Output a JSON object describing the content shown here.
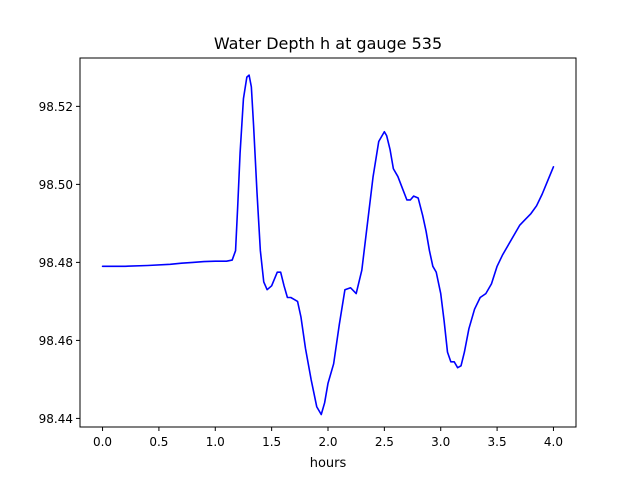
{
  "chart_data": {
    "type": "line",
    "title": "Water Depth h at gauge 535",
    "xlabel": "hours",
    "ylabel": "",
    "xlim": [
      -0.2,
      4.2
    ],
    "ylim": [
      98.4378,
      98.5324
    ],
    "xticks": [
      0.0,
      0.5,
      1.0,
      1.5,
      2.0,
      2.5,
      3.0,
      3.5,
      4.0
    ],
    "xtick_labels": [
      "0.0",
      "0.5",
      "1.0",
      "1.5",
      "2.0",
      "2.5",
      "3.0",
      "3.5",
      "4.0"
    ],
    "yticks": [
      98.44,
      98.46,
      98.48,
      98.5,
      98.52
    ],
    "ytick_labels": [
      "98.44",
      "98.46",
      "98.48",
      "98.50",
      "98.52"
    ],
    "grid": false,
    "series": [
      {
        "name": "",
        "color": "#0000ff",
        "x": [
          0.0,
          0.2,
          0.4,
          0.6,
          0.7,
          0.8,
          0.9,
          1.0,
          1.1,
          1.15,
          1.18,
          1.2,
          1.22,
          1.25,
          1.28,
          1.3,
          1.32,
          1.34,
          1.37,
          1.4,
          1.43,
          1.46,
          1.5,
          1.55,
          1.58,
          1.61,
          1.64,
          1.67,
          1.7,
          1.73,
          1.76,
          1.8,
          1.85,
          1.9,
          1.94,
          1.97,
          2.0,
          2.05,
          2.1,
          2.15,
          2.2,
          2.25,
          2.3,
          2.35,
          2.4,
          2.45,
          2.5,
          2.52,
          2.55,
          2.58,
          2.62,
          2.66,
          2.7,
          2.73,
          2.76,
          2.8,
          2.84,
          2.87,
          2.9,
          2.93,
          2.96,
          3.0,
          3.03,
          3.06,
          3.09,
          3.12,
          3.15,
          3.18,
          3.21,
          3.25,
          3.3,
          3.35,
          3.4,
          3.45,
          3.5,
          3.55,
          3.6,
          3.65,
          3.7,
          3.75,
          3.8,
          3.85,
          3.9,
          3.95,
          4.0
        ],
        "y": [
          98.479,
          98.479,
          98.4792,
          98.4795,
          98.4798,
          98.48,
          98.4802,
          98.4803,
          98.4803,
          98.4806,
          98.483,
          98.495,
          98.508,
          98.522,
          98.5275,
          98.528,
          98.525,
          98.515,
          98.498,
          98.483,
          98.475,
          98.473,
          98.474,
          98.4775,
          98.4775,
          98.474,
          98.471,
          98.471,
          98.4705,
          98.47,
          98.466,
          98.458,
          98.45,
          98.443,
          98.441,
          98.444,
          98.449,
          98.454,
          98.464,
          98.473,
          98.4735,
          98.472,
          98.478,
          98.49,
          98.502,
          98.511,
          98.5135,
          98.5125,
          98.509,
          98.504,
          98.502,
          98.499,
          98.496,
          98.496,
          98.497,
          98.4965,
          98.492,
          98.488,
          98.483,
          98.479,
          98.4775,
          98.472,
          98.465,
          98.457,
          98.4545,
          98.4545,
          98.453,
          98.4535,
          98.457,
          98.463,
          98.468,
          98.471,
          98.472,
          98.4745,
          98.479,
          98.482,
          98.4845,
          98.487,
          98.4895,
          98.491,
          98.4925,
          98.4945,
          98.4975,
          98.501,
          98.5045
        ]
      }
    ]
  }
}
